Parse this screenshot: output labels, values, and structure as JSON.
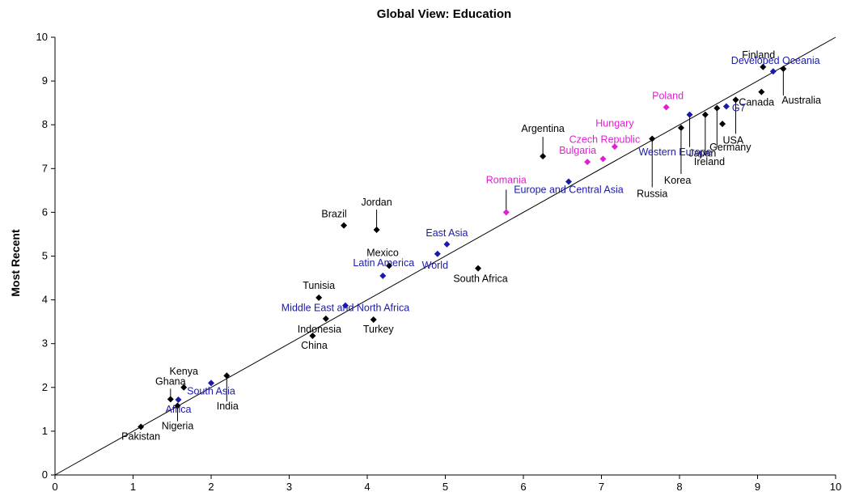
{
  "chart_data": {
    "type": "scatter",
    "title": "Global View: Education",
    "xlabel": "",
    "ylabel": "Most Recent",
    "xlim": [
      0,
      10
    ],
    "ylim": [
      0,
      10
    ],
    "xticks": [
      "0",
      "1",
      "2",
      "3",
      "4",
      "5",
      "6",
      "7",
      "8",
      "9",
      "10"
    ],
    "yticks": [
      "0",
      "1",
      "2",
      "3",
      "4",
      "5",
      "6",
      "7",
      "8",
      "9",
      "10"
    ],
    "reference_line": "y = x",
    "colors": {
      "country": "#000000",
      "region": "#1a1aaa",
      "eastern_europe": "#e020d0",
      "line": "#000000"
    },
    "points": [
      {
        "label": "Finland",
        "x": 9.07,
        "y": 9.32,
        "group": "country"
      },
      {
        "label": "Developed Oceania",
        "x": 9.2,
        "y": 9.22,
        "group": "region"
      },
      {
        "label": "Australia",
        "x": 9.33,
        "y": 9.28,
        "group": "country"
      },
      {
        "label": "Canada",
        "x": 9.05,
        "y": 8.75,
        "group": "country"
      },
      {
        "label": "G7",
        "x": 8.6,
        "y": 8.42,
        "group": "region"
      },
      {
        "label": "USA",
        "x": 8.72,
        "y": 8.57,
        "group": "country"
      },
      {
        "label": "Germany",
        "x": 8.55,
        "y": 8.02,
        "group": "country"
      },
      {
        "label": "Japan",
        "x": 8.48,
        "y": 8.38,
        "group": "country"
      },
      {
        "label": "Ireland",
        "x": 8.33,
        "y": 8.23,
        "group": "country"
      },
      {
        "label": "Korea",
        "x": 8.02,
        "y": 7.93,
        "group": "country"
      },
      {
        "label": "Western Europe",
        "x": 8.13,
        "y": 8.23,
        "group": "region"
      },
      {
        "label": "Poland",
        "x": 7.83,
        "y": 8.4,
        "group": "eastern_europe"
      },
      {
        "label": "Russia",
        "x": 7.65,
        "y": 7.68,
        "group": "country"
      },
      {
        "label": "Hungary",
        "x": 7.17,
        "y": 7.5,
        "group": "eastern_europe"
      },
      {
        "label": "Czech Republic",
        "x": 7.02,
        "y": 7.22,
        "group": "eastern_europe"
      },
      {
        "label": "Bulgaria",
        "x": 6.82,
        "y": 7.15,
        "group": "eastern_europe"
      },
      {
        "label": "Argentina",
        "x": 6.25,
        "y": 7.28,
        "group": "country"
      },
      {
        "label": "Europe and Central Asia",
        "x": 6.58,
        "y": 6.7,
        "group": "region"
      },
      {
        "label": "Romania",
        "x": 5.78,
        "y": 6.0,
        "group": "eastern_europe"
      },
      {
        "label": "Jordan",
        "x": 4.12,
        "y": 5.6,
        "group": "country"
      },
      {
        "label": "Brazil",
        "x": 3.7,
        "y": 5.7,
        "group": "country"
      },
      {
        "label": "East Asia",
        "x": 5.02,
        "y": 5.27,
        "group": "region"
      },
      {
        "label": "World",
        "x": 4.9,
        "y": 5.05,
        "group": "region"
      },
      {
        "label": "Mexico",
        "x": 4.28,
        "y": 4.78,
        "group": "country"
      },
      {
        "label": "Latin America",
        "x": 4.2,
        "y": 4.55,
        "group": "region"
      },
      {
        "label": "South Africa",
        "x": 5.42,
        "y": 4.72,
        "group": "country"
      },
      {
        "label": "Tunisia",
        "x": 3.38,
        "y": 4.05,
        "group": "country"
      },
      {
        "label": "Middle East and North Africa",
        "x": 3.72,
        "y": 3.87,
        "group": "region"
      },
      {
        "label": "Indonesia",
        "x": 3.47,
        "y": 3.57,
        "group": "country"
      },
      {
        "label": "Turkey",
        "x": 4.08,
        "y": 3.55,
        "group": "country"
      },
      {
        "label": "China",
        "x": 3.3,
        "y": 3.18,
        "group": "country"
      },
      {
        "label": "India",
        "x": 2.2,
        "y": 2.27,
        "group": "country"
      },
      {
        "label": "South Asia",
        "x": 2.0,
        "y": 2.1,
        "group": "region"
      },
      {
        "label": "Kenya",
        "x": 1.65,
        "y": 2.0,
        "group": "country"
      },
      {
        "label": "Ghana",
        "x": 1.48,
        "y": 1.73,
        "group": "country"
      },
      {
        "label": "Africa",
        "x": 1.58,
        "y": 1.72,
        "group": "region"
      },
      {
        "label": "Nigeria",
        "x": 1.57,
        "y": 1.58,
        "group": "country"
      },
      {
        "label": "Pakistan",
        "x": 1.1,
        "y": 1.1,
        "group": "country"
      }
    ]
  }
}
